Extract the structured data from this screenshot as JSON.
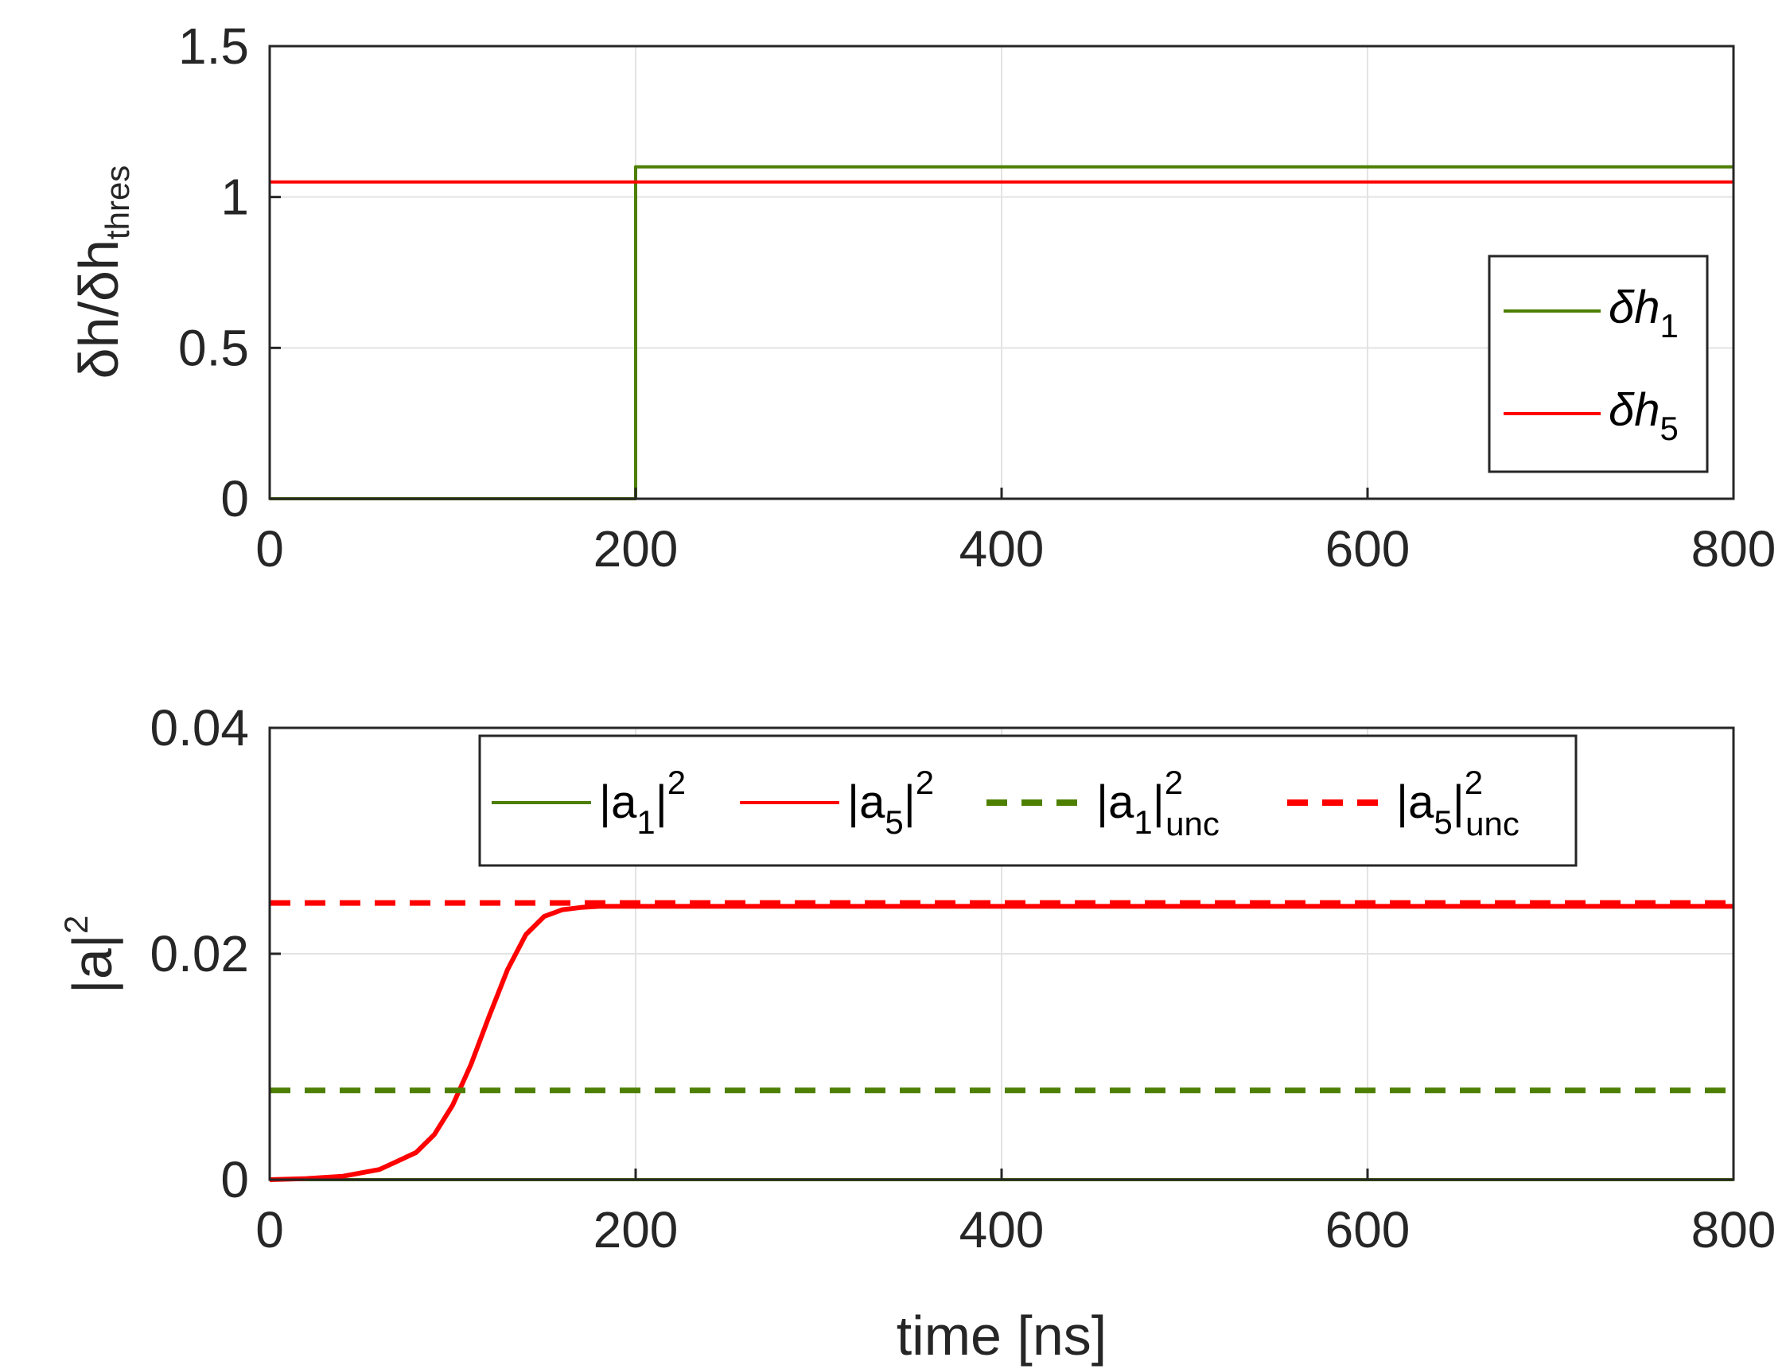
{
  "colors": {
    "green": "#4d7f00",
    "red": "#ff0000",
    "text": "#262626",
    "grid": "#e3e3e3"
  },
  "chart_data": [
    {
      "type": "line",
      "panel": "top",
      "xlabel": "",
      "ylabel": {
        "base": "δh/δh",
        "sub": "thres"
      },
      "xlim": [
        0,
        800
      ],
      "ylim": [
        0,
        1.5
      ],
      "xticks": [
        0,
        200,
        400,
        600,
        800
      ],
      "yticks": [
        0,
        0.5,
        1,
        1.5
      ],
      "xtick_labels": [
        "0",
        "200",
        "400",
        "600",
        "800"
      ],
      "ytick_labels": [
        "0",
        "0.5",
        "1",
        "1.5"
      ],
      "grid": true,
      "legend_position": "right",
      "series": [
        {
          "name": "δh_1",
          "label": {
            "base": "δh",
            "sub": "1"
          },
          "color": "#4d7f00",
          "style": "solid",
          "x": [
            0,
            200,
            200,
            800
          ],
          "y": [
            0,
            0,
            1.1,
            1.1
          ]
        },
        {
          "name": "δh_5",
          "label": {
            "base": "δh",
            "sub": "5"
          },
          "color": "#ff0000",
          "style": "solid",
          "x": [
            0,
            800
          ],
          "y": [
            1.05,
            1.05
          ]
        }
      ]
    },
    {
      "type": "line",
      "panel": "bottom",
      "xlabel": "time [ns]",
      "ylabel": {
        "base": "|a|",
        "sup": "2"
      },
      "xlim": [
        0,
        800
      ],
      "ylim": [
        0,
        0.04
      ],
      "xticks": [
        0,
        200,
        400,
        600,
        800
      ],
      "yticks": [
        0,
        0.02,
        0.04
      ],
      "xtick_labels": [
        "0",
        "200",
        "400",
        "600",
        "800"
      ],
      "ytick_labels": [
        "0",
        "0.02",
        "0.04"
      ],
      "grid": true,
      "legend_position": "top",
      "series": [
        {
          "name": "|a_1|^2",
          "label": {
            "base": "|a",
            "sub": "1",
            "mid": "|",
            "sup": "2"
          },
          "color": "#4d7f00",
          "style": "solid",
          "x": [
            0,
            800
          ],
          "y": [
            0,
            0
          ]
        },
        {
          "name": "|a_5|^2",
          "label": {
            "base": "|a",
            "sub": "5",
            "mid": "|",
            "sup": "2"
          },
          "color": "#ff0000",
          "style": "solid",
          "x": [
            0,
            20,
            40,
            60,
            80,
            90,
            100,
            110,
            120,
            130,
            140,
            150,
            160,
            170,
            180,
            200,
            400,
            600,
            800
          ],
          "y": [
            0,
            0.0001,
            0.0003,
            0.0009,
            0.0024,
            0.004,
            0.0066,
            0.0102,
            0.0145,
            0.0186,
            0.0217,
            0.0233,
            0.0239,
            0.0241,
            0.0242,
            0.0242,
            0.0242,
            0.0242,
            0.0242
          ]
        },
        {
          "name": "|a_1|^2_unc",
          "label": {
            "base": "|a",
            "sub": "1",
            "mid": "|",
            "sup": "2",
            "sub2": "unc"
          },
          "color": "#4d7f00",
          "style": "dashed",
          "x": [
            0,
            800
          ],
          "y": [
            0.0079,
            0.0079
          ]
        },
        {
          "name": "|a_5|^2_unc",
          "label": {
            "base": "|a",
            "sub": "5",
            "mid": "|",
            "sup": "2",
            "sub2": "unc"
          },
          "color": "#ff0000",
          "style": "dashed",
          "x": [
            0,
            800
          ],
          "y": [
            0.0245,
            0.0245
          ]
        }
      ]
    }
  ]
}
